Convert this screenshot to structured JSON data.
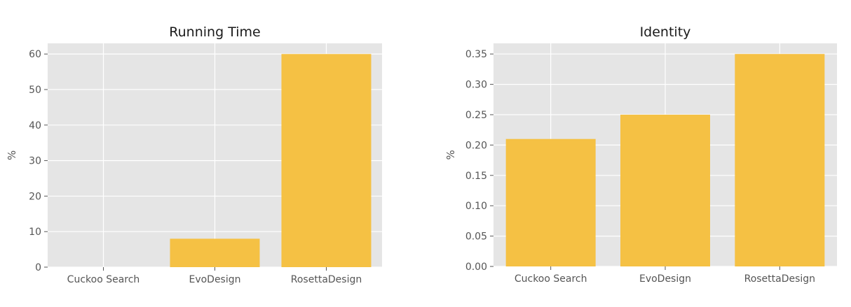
{
  "chart_data": [
    {
      "type": "bar",
      "title": "Running Time",
      "xlabel": "",
      "ylabel": "%",
      "categories": [
        "Cuckoo Search",
        "EvoDesign",
        "RosettaDesign"
      ],
      "values": [
        0,
        8,
        60
      ],
      "ylim": [
        0,
        63
      ],
      "yticks": [
        0,
        10,
        20,
        30,
        40,
        50,
        60
      ],
      "ytick_labels": [
        "0",
        "10",
        "20",
        "30",
        "40",
        "50",
        "60"
      ],
      "grid": true,
      "bar_color": "#F5C144",
      "background_color": "#E5E5E5",
      "grid_color": "#FFFFFF"
    },
    {
      "type": "bar",
      "title": "Identity",
      "xlabel": "",
      "ylabel": "%",
      "categories": [
        "Cuckoo Search",
        "EvoDesign",
        "RosettaDesign"
      ],
      "values": [
        0.21,
        0.25,
        0.35
      ],
      "ylim": [
        0,
        0.3675
      ],
      "yticks": [
        0,
        0.05,
        0.1,
        0.15,
        0.2,
        0.25,
        0.3,
        0.35
      ],
      "ytick_labels": [
        "0.00",
        "0.05",
        "0.10",
        "0.15",
        "0.20",
        "0.25",
        "0.30",
        "0.35"
      ],
      "grid": true,
      "bar_color": "#F5C144",
      "background_color": "#E5E5E5",
      "grid_color": "#FFFFFF"
    }
  ]
}
